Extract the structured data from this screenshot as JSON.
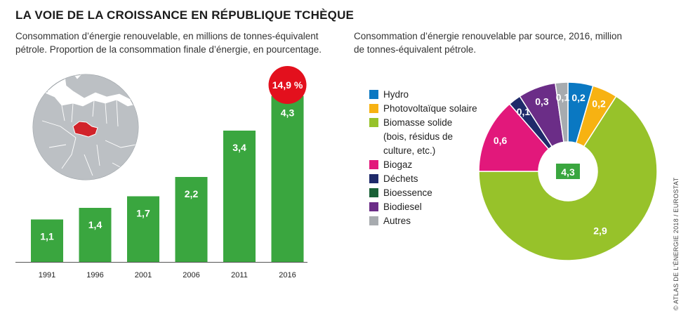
{
  "title": "LA VOIE DE LA CROISSANCE EN RÉPUBLIQUE TCHÈQUE",
  "subtitle_left": "Consommation d’énergie renouvelable, en millions de tonnes-équivalent pétrole. Proportion de la consommation finale d’énergie, en pourcentage.",
  "subtitle_right": "Consommation d’énergie renouvelable par source, 2016, million de tonnes-équivalent pétrole.",
  "share_badge": "14,9 %",
  "credit": "© ATLAS DE L’ÉNERGIE 2018 / EUROSTAT",
  "colors": {
    "bar": "#3aa63f",
    "badge": "#e3101d",
    "map_land": "#bcc0c4",
    "map_water": "#ffffff",
    "map_border": "#ffffff",
    "czech": "#d1232a"
  },
  "chart_data": [
    {
      "type": "bar",
      "categories": [
        "1991",
        "1996",
        "2001",
        "2006",
        "2011",
        "2016"
      ],
      "values": [
        1.1,
        1.4,
        1.7,
        2.2,
        3.4,
        4.3
      ],
      "value_labels": [
        "1,1",
        "1,4",
        "1,7",
        "2,2",
        "3,4",
        "4,3"
      ],
      "ylim": [
        0,
        4.6
      ],
      "grid": false,
      "color": "#3aa63f"
    },
    {
      "type": "pie",
      "donut": true,
      "center_label": "4,3",
      "legend_position": "left",
      "slices": [
        {
          "label": "Hydro",
          "value": 0.2,
          "value_label": "0,2",
          "color": "#0a78c2"
        },
        {
          "label": "Photovoltaïque solaire",
          "value": 0.2,
          "value_label": "0,2",
          "color": "#f7b212"
        },
        {
          "label": "Biomasse solide\n(bois, résidus de\nculture, etc.)",
          "value": 2.9,
          "value_label": "2,9",
          "color": "#97c22a"
        },
        {
          "label": "Biogaz",
          "value": 0.6,
          "value_label": "0,6",
          "color": "#e2187b"
        },
        {
          "label": "Déchets",
          "value": 0.1,
          "value_label": "0,1",
          "color": "#1f2a6a"
        },
        {
          "label": "Bioessence",
          "value": 0.0,
          "value_label": "",
          "color": "#1a6136"
        },
        {
          "label": "Biodiesel",
          "value": 0.3,
          "value_label": "0,3",
          "color": "#6b2d87"
        },
        {
          "label": "Autres",
          "value": 0.1,
          "value_label": "0,1",
          "color": "#a7abaf"
        }
      ]
    }
  ]
}
